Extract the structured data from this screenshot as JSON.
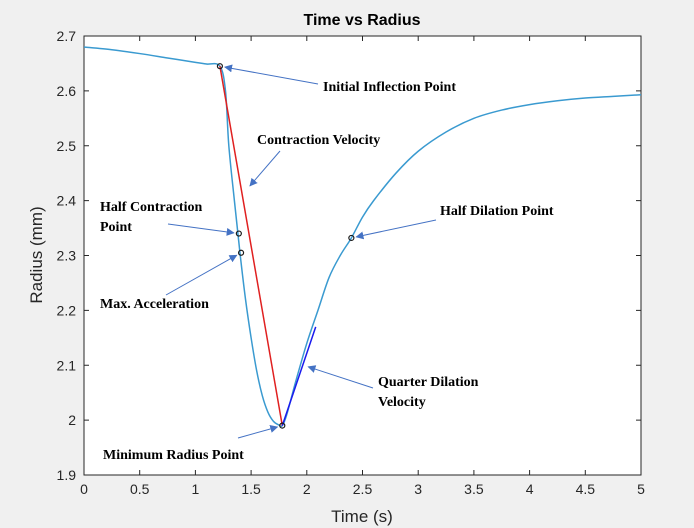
{
  "chart_data": {
    "type": "line",
    "title": "Time vs Radius",
    "xlabel": "Time (s)",
    "ylabel": "Radius (mm)",
    "xlim": [
      0,
      5
    ],
    "ylim": [
      1.9,
      2.7
    ],
    "xticks": [
      0,
      0.5,
      1,
      1.5,
      2,
      2.5,
      3,
      3.5,
      4,
      4.5,
      5
    ],
    "xtick_labels": [
      "0",
      "0.5",
      "1",
      "1.5",
      "2",
      "2.5",
      "3",
      "3.5",
      "4",
      "4.5",
      "5"
    ],
    "yticks": [
      1.9,
      2.0,
      2.1,
      2.2,
      2.3,
      2.4,
      2.5,
      2.6,
      2.7
    ],
    "ytick_labels": [
      "1.9",
      "2",
      "2.1",
      "2.2",
      "2.3",
      "2.4",
      "2.5",
      "2.6",
      "2.7"
    ],
    "grid": false,
    "colors": {
      "curve": "#3a9ad0",
      "contraction_line": "#e02020",
      "dilation_line": "#1a1aee",
      "arrow": "#4472c4",
      "marker": "#1a1a1a"
    },
    "series": [
      {
        "x": [
          0,
          0.25,
          0.5,
          0.75,
          1.0,
          1.1,
          1.22,
          1.27,
          1.3,
          1.35,
          1.4,
          1.45,
          1.5,
          1.55,
          1.6,
          1.65,
          1.7,
          1.75,
          1.78,
          1.82,
          1.9,
          2.0,
          2.1,
          2.2,
          2.3,
          2.4,
          2.5,
          2.6,
          2.8,
          3.0,
          3.25,
          3.5,
          3.75,
          4.0,
          4.25,
          4.5,
          4.75,
          5.0
        ],
        "y": [
          2.68,
          2.675,
          2.668,
          2.66,
          2.652,
          2.649,
          2.645,
          2.6,
          2.5,
          2.4,
          2.305,
          2.22,
          2.15,
          2.09,
          2.045,
          2.015,
          1.998,
          1.991,
          1.99,
          2.01,
          2.07,
          2.14,
          2.2,
          2.26,
          2.3,
          2.332,
          2.37,
          2.4,
          2.45,
          2.49,
          2.525,
          2.55,
          2.565,
          2.575,
          2.582,
          2.587,
          2.59,
          2.593
        ]
      }
    ],
    "contraction_line": {
      "x": [
        1.22,
        1.78
      ],
      "y": [
        2.645,
        1.99
      ]
    },
    "dilation_line": {
      "x": [
        1.78,
        2.08
      ],
      "y": [
        1.99,
        2.17
      ]
    },
    "markers": [
      {
        "x": 1.22,
        "y": 2.645
      },
      {
        "x": 1.39,
        "y": 2.34
      },
      {
        "x": 1.41,
        "y": 2.305
      },
      {
        "x": 1.78,
        "y": 1.99
      },
      {
        "x": 2.4,
        "y": 2.332
      }
    ],
    "annotations": [
      {
        "lines": [
          "Initial Inflection Point"
        ],
        "target": [
          1.22,
          2.645
        ]
      },
      {
        "lines": [
          "Contraction Velocity"
        ],
        "target": [
          1.46,
          2.42
        ]
      },
      {
        "lines": [
          "Half Contraction",
          "Point"
        ],
        "target": [
          1.39,
          2.34
        ]
      },
      {
        "lines": [
          "Max. Acceleration"
        ],
        "target": [
          1.41,
          2.305
        ]
      },
      {
        "lines": [
          "Minimum Radius Point"
        ],
        "target": [
          1.78,
          1.99
        ]
      },
      {
        "lines": [
          "Quarter Dilation",
          "Velocity"
        ],
        "target": [
          1.97,
          2.1
        ]
      },
      {
        "lines": [
          "Half Dilation Point"
        ],
        "target": [
          2.4,
          2.332
        ]
      }
    ]
  }
}
